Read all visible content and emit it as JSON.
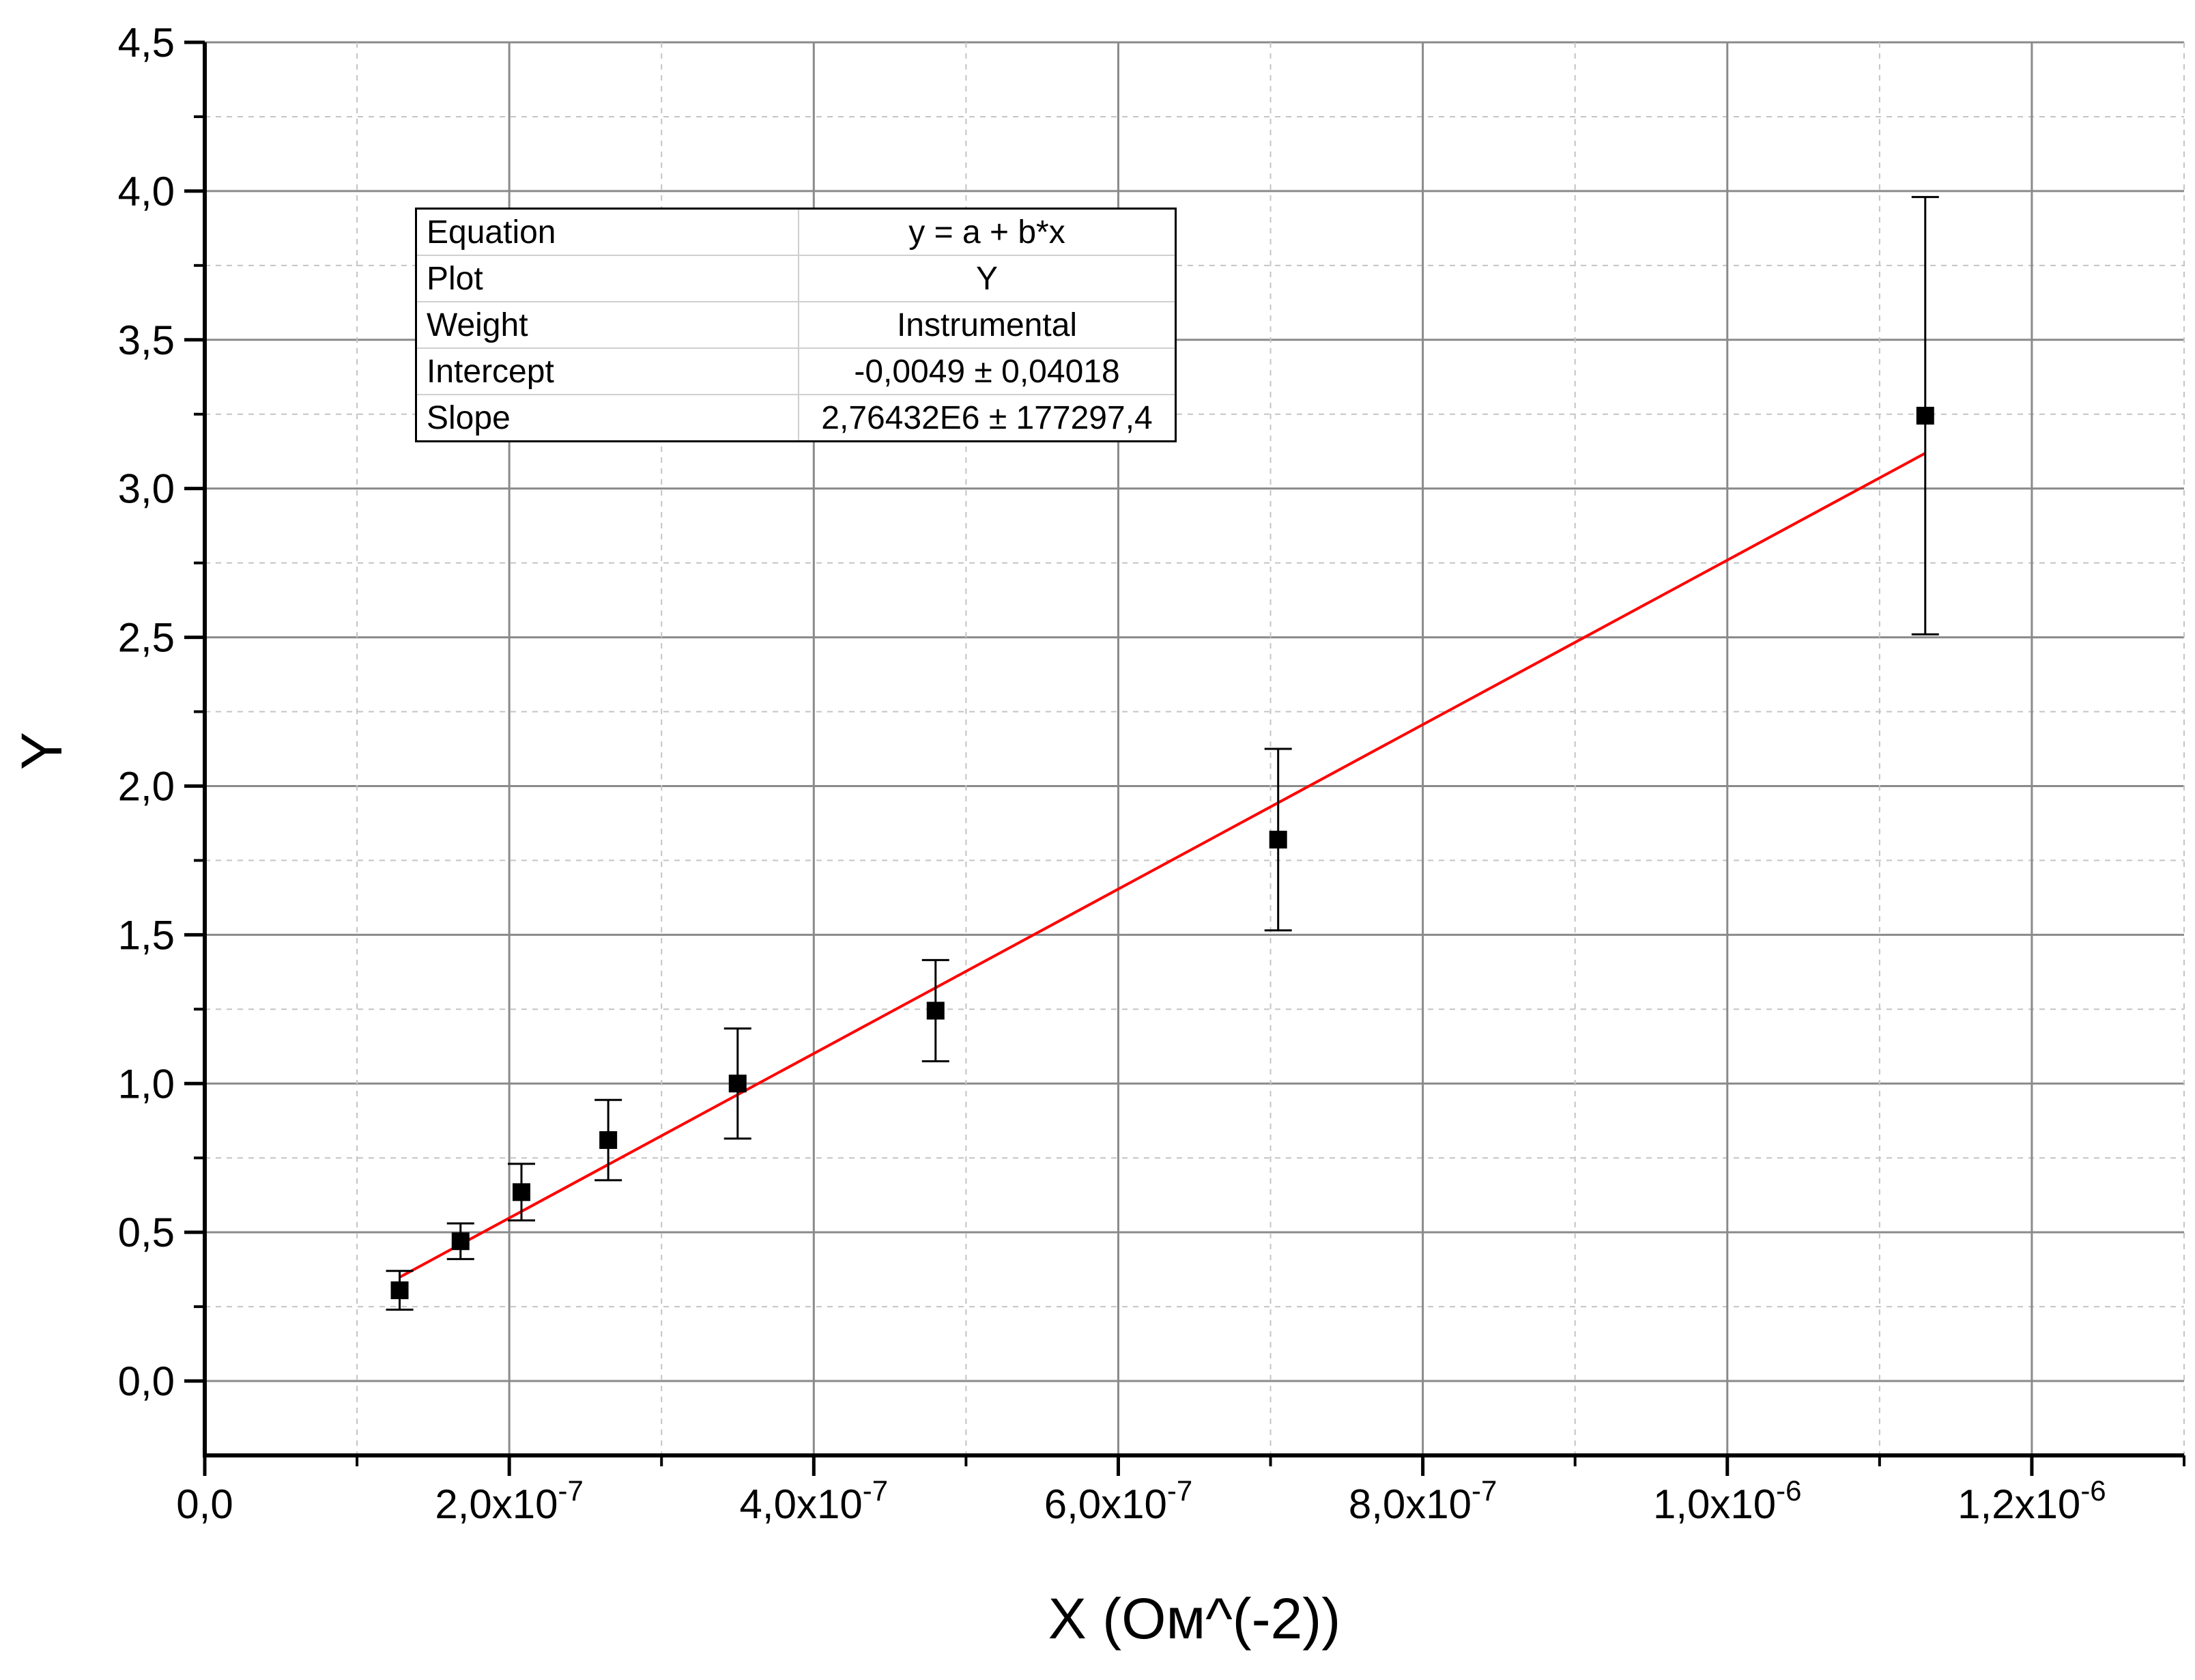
{
  "chart_data": {
    "type": "scatter",
    "xlabel": "X (Ом^(-2))",
    "ylabel": "Y",
    "xlim": [
      0,
      1.3e-06
    ],
    "ylim": [
      -0.25,
      4.5
    ],
    "y_ticks": [
      {
        "value": 0.0,
        "label": "0,0"
      },
      {
        "value": 0.5,
        "label": "0,5"
      },
      {
        "value": 1.0,
        "label": "1,0"
      },
      {
        "value": 1.5,
        "label": "1,5"
      },
      {
        "value": 2.0,
        "label": "2,0"
      },
      {
        "value": 2.5,
        "label": "2,5"
      },
      {
        "value": 3.0,
        "label": "3,0"
      },
      {
        "value": 3.5,
        "label": "3,5"
      },
      {
        "value": 4.0,
        "label": "4,0"
      },
      {
        "value": 4.5,
        "label": "4,5"
      }
    ],
    "x_ticks": [
      {
        "value": 0.0,
        "mant": "0,0",
        "exp": ""
      },
      {
        "value": 2e-07,
        "mant": "2,0x10",
        "exp": "-7"
      },
      {
        "value": 4e-07,
        "mant": "4,0x10",
        "exp": "-7"
      },
      {
        "value": 6e-07,
        "mant": "6,0x10",
        "exp": "-7"
      },
      {
        "value": 8e-07,
        "mant": "8,0x10",
        "exp": "-7"
      },
      {
        "value": 1e-06,
        "mant": "1,0x10",
        "exp": "-6"
      },
      {
        "value": 1.2e-06,
        "mant": "1,2x10",
        "exp": "-6"
      }
    ],
    "grid": true,
    "series": [
      {
        "type": "scatter",
        "marker": "square",
        "color": "#000000",
        "points": [
          {
            "x": 1.28e-07,
            "y": 0.305,
            "err": 0.065
          },
          {
            "x": 1.68e-07,
            "y": 0.47,
            "err": 0.06
          },
          {
            "x": 2.08e-07,
            "y": 0.635,
            "err": 0.095
          },
          {
            "x": 2.65e-07,
            "y": 0.81,
            "err": 0.135
          },
          {
            "x": 3.5e-07,
            "y": 1.0,
            "err": 0.185
          },
          {
            "x": 4.8e-07,
            "y": 1.245,
            "err": 0.17
          },
          {
            "x": 7.05e-07,
            "y": 1.82,
            "err": 0.305
          },
          {
            "x": 1.13e-06,
            "y": 3.245,
            "err": 0.735
          }
        ]
      },
      {
        "type": "line",
        "color": "#ff0000",
        "intercept": -0.0049,
        "slope": 2764320,
        "x_range": [
          1.28e-07,
          1.13e-06
        ]
      }
    ],
    "fit_table": {
      "rows": [
        {
          "key": "Equation",
          "value": "y = a + b*x"
        },
        {
          "key": "Plot",
          "value": "Y"
        },
        {
          "key": "Weight",
          "value": "Instrumental"
        },
        {
          "key": "Intercept",
          "value": "-0,0049 ± 0,04018"
        },
        {
          "key": "Slope",
          "value": "2,76432E6 ± 177297,4"
        }
      ]
    }
  }
}
